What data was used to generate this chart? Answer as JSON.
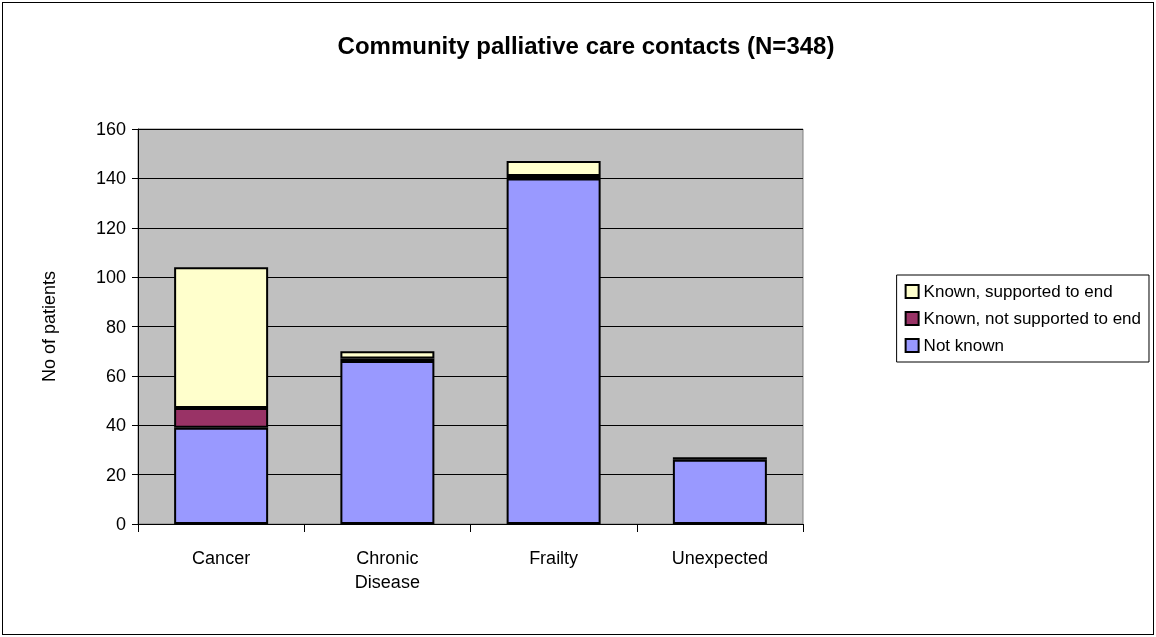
{
  "chart_data": {
    "type": "bar",
    "title": "Community palliative care contacts (N=348)",
    "ylabel": "No of patients",
    "categories": [
      "Cancer",
      "Chronic\nDisease",
      "Frailty",
      "Unexpected"
    ],
    "stacked": true,
    "ylim": [
      0,
      160
    ],
    "yticks": [
      0,
      20,
      40,
      60,
      80,
      100,
      120,
      140,
      160
    ],
    "grid": "y",
    "legend": "right",
    "series": [
      {
        "name": "Not known",
        "color": "#9999ff",
        "values": [
          39,
          66,
          140,
          26
        ]
      },
      {
        "name": "Known, not supported to end",
        "color": "#993366",
        "values": [
          8,
          1,
          1,
          1
        ]
      },
      {
        "name": "Known, supported to end",
        "color": "#ffffcc",
        "values": [
          57,
          3,
          6,
          0
        ]
      }
    ]
  }
}
